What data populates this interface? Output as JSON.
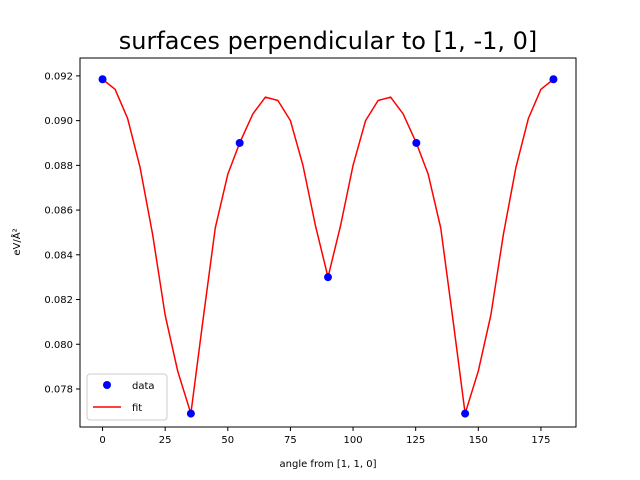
{
  "chart_data": {
    "type": "line",
    "title": "surfaces perpendicular to [1, -1, 0]",
    "xlabel": "angle from [1, 1, 0]",
    "ylabel": "eV/Å²",
    "xlim": [
      -9,
      189
    ],
    "ylim": [
      0.0763,
      0.0928
    ],
    "xticks": [
      0,
      25,
      50,
      75,
      100,
      125,
      150,
      175
    ],
    "xtick_labels": [
      "0",
      "25",
      "50",
      "75",
      "100",
      "125",
      "150",
      "175"
    ],
    "yticks": [
      0.078,
      0.08,
      0.082,
      0.084,
      0.086,
      0.088,
      0.09,
      0.092
    ],
    "ytick_labels": [
      "0.078",
      "0.080",
      "0.082",
      "0.084",
      "0.086",
      "0.088",
      "0.090",
      "0.092"
    ],
    "grid": false,
    "legend_position": "lower-left",
    "series": [
      {
        "name": "data",
        "kind": "scatter",
        "color": "#0000ff",
        "x": [
          0,
          35.26,
          54.74,
          90,
          125.26,
          144.74,
          180
        ],
        "y": [
          0.09185,
          0.0769,
          0.089,
          0.083,
          0.089,
          0.0769,
          0.09185
        ]
      },
      {
        "name": "fit",
        "kind": "line",
        "color": "#ff0000",
        "x": [
          0,
          5,
          10,
          15,
          20,
          25,
          30,
          35.26,
          40,
          45,
          50,
          54.74,
          60,
          65,
          70,
          75,
          80,
          85,
          90,
          95,
          100,
          105,
          110,
          115,
          120,
          125.26,
          130,
          135,
          140,
          144.74,
          150,
          155,
          160,
          165,
          170,
          175,
          180
        ],
        "y": [
          0.09185,
          0.0914,
          0.0901,
          0.0879,
          0.0849,
          0.0813,
          0.0788,
          0.0769,
          0.081,
          0.0852,
          0.0876,
          0.089,
          0.0903,
          0.09105,
          0.0909,
          0.09,
          0.088,
          0.0853,
          0.083,
          0.0853,
          0.088,
          0.09,
          0.0909,
          0.09105,
          0.0903,
          0.089,
          0.0876,
          0.0852,
          0.081,
          0.0769,
          0.0788,
          0.0813,
          0.0849,
          0.0879,
          0.0901,
          0.0914,
          0.09185
        ]
      }
    ]
  }
}
